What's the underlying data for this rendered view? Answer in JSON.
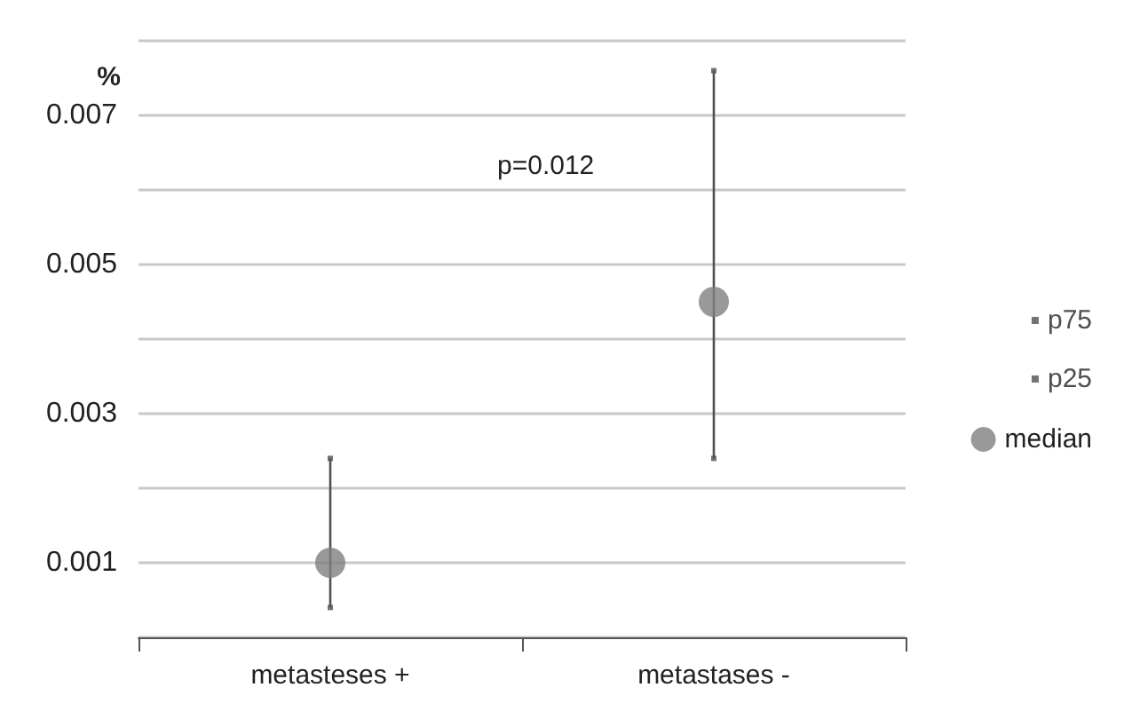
{
  "chart_data": {
    "type": "scatter",
    "ylabel": "%",
    "categories": [
      "metasteses +",
      "metastases -"
    ],
    "series": [
      {
        "name": "p75",
        "color": "#505050",
        "values": [
          0.0024,
          0.0076
        ]
      },
      {
        "name": "p25",
        "color": "#505050",
        "values": [
          0.0004,
          0.0024
        ]
      },
      {
        "name": "median",
        "color": "#7f7f7f",
        "marker": "circle",
        "values": [
          0.001,
          0.0045
        ]
      }
    ],
    "ylim": [
      0,
      0.008
    ],
    "yticks": [
      {
        "value": 0,
        "label": null
      },
      0.001,
      {
        "value": 0.002,
        "label": null
      },
      0.003,
      {
        "value": 0.004,
        "label": null
      },
      0.005,
      {
        "value": 0.006,
        "label": null
      },
      0.007,
      {
        "value": 0.008,
        "label": null
      }
    ],
    "grid": "y",
    "legend": "right",
    "annotations": [
      "p=0.012"
    ]
  }
}
